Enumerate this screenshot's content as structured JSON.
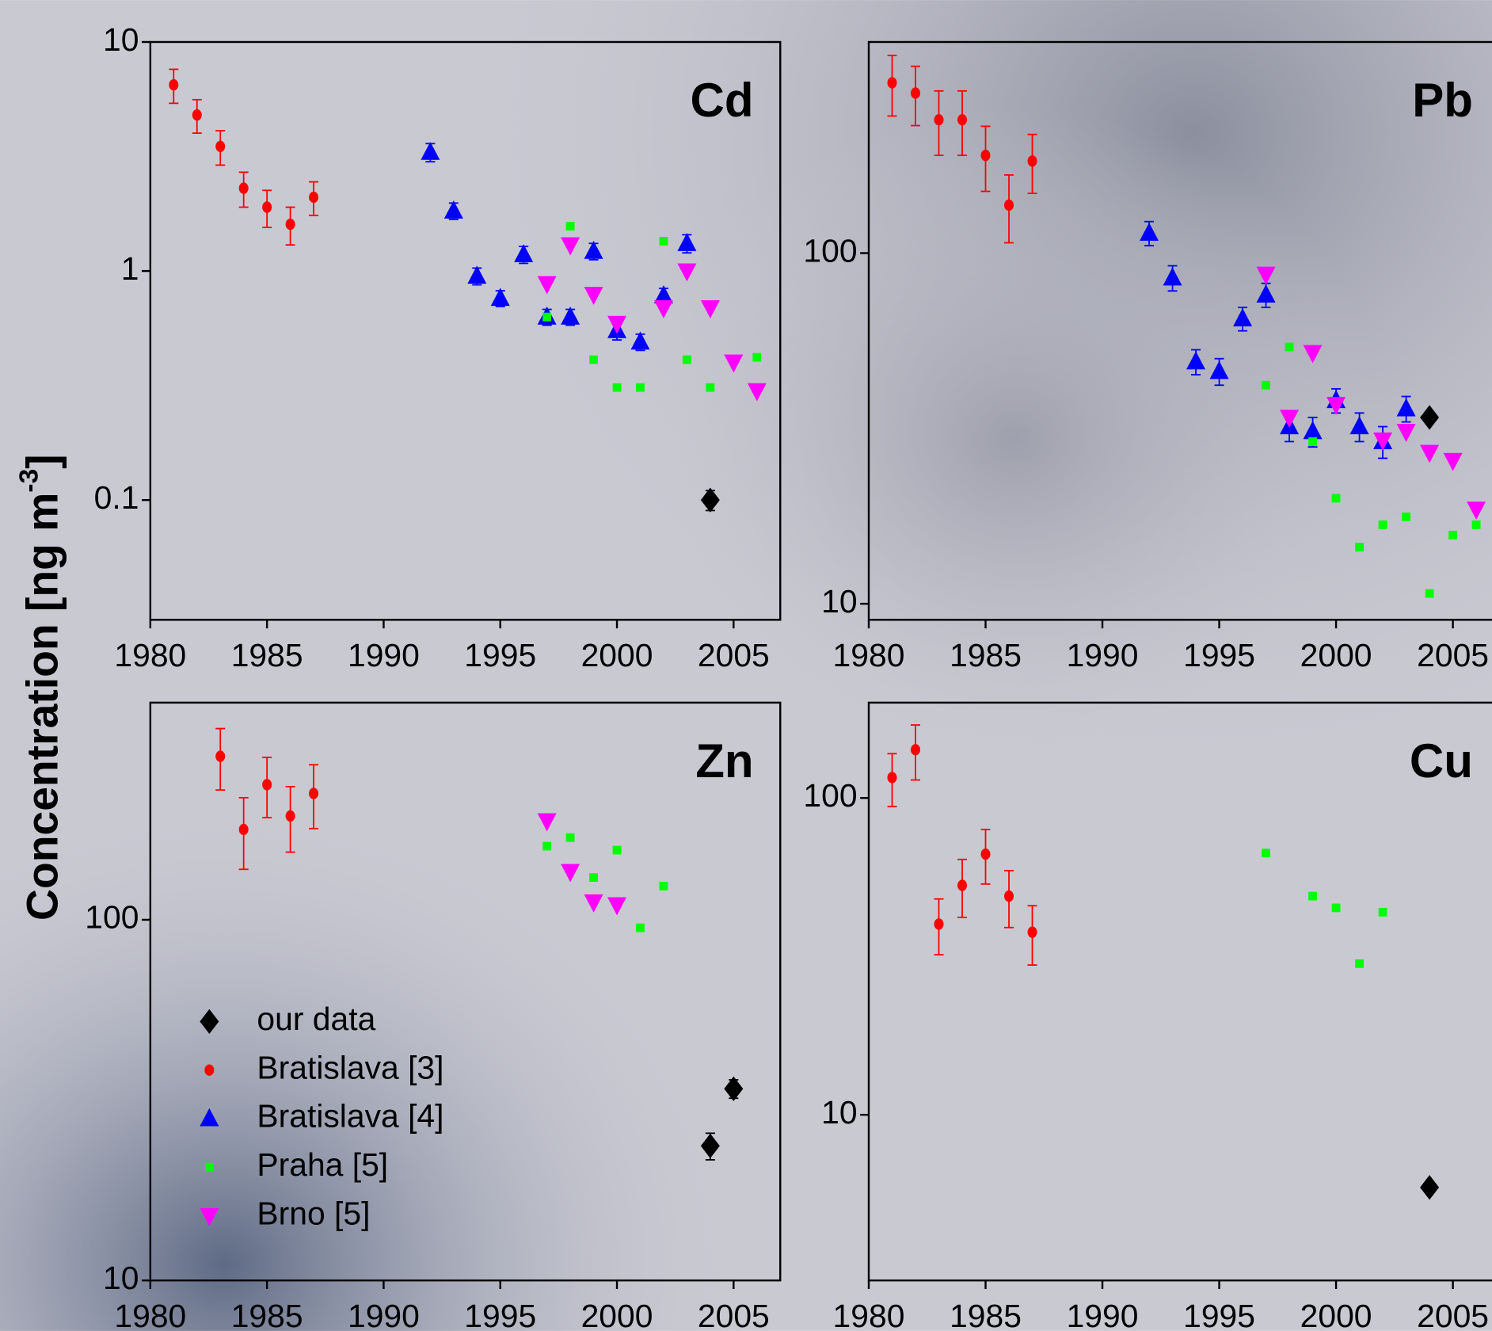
{
  "ylabel": {
    "text": "Concentration [ng m",
    "sup": "-3",
    "end": "]"
  },
  "legend": [
    {
      "name": "our data",
      "color": "#000000",
      "marker": "diamond"
    },
    {
      "name": "Bratislava [3]",
      "color": "#ff0000",
      "marker": "circle"
    },
    {
      "name": "Bratislava [4]",
      "color": "#0000ff",
      "marker": "triangle-up"
    },
    {
      "name": "Praha [5]",
      "color": "#00ff00",
      "marker": "square"
    },
    {
      "name": "Brno [5]",
      "color": "#ff00ff",
      "marker": "triangle-down"
    }
  ],
  "chart_data": [
    {
      "type": "scatter",
      "label": "Cd",
      "log_y": true,
      "xlim": [
        1980,
        2007
      ],
      "ylim": [
        0.03,
        10
      ],
      "xticks": [
        1980,
        1985,
        1990,
        1995,
        2000,
        2005
      ],
      "yticks": [
        0.1,
        1,
        10
      ],
      "series": [
        {
          "color": "#ff0000",
          "marker": "circle",
          "x": [
            1981,
            1982,
            1983,
            1984,
            1985,
            1986,
            1987
          ],
          "values": [
            6.5,
            4.8,
            3.5,
            2.3,
            1.9,
            1.6,
            2.1
          ],
          "errors": [
            1.1,
            0.8,
            0.6,
            0.4,
            0.35,
            0.3,
            0.35
          ]
        },
        {
          "color": "#0000ff",
          "marker": "triangle-up",
          "x": [
            1992,
            1993,
            1994,
            1995,
            1996,
            1997,
            1998,
            1999,
            2000,
            2001,
            2002,
            2003
          ],
          "values": [
            3.3,
            1.83,
            0.95,
            0.76,
            1.18,
            0.63,
            0.63,
            1.22,
            0.55,
            0.49,
            0.78,
            1.32
          ],
          "errors": [
            0.3,
            0.15,
            0.08,
            0.06,
            0.1,
            0.05,
            0.05,
            0.1,
            0.05,
            0.04,
            0.06,
            0.12
          ]
        },
        {
          "color": "#00ff00",
          "marker": "square",
          "x": [
            1997,
            1998,
            1999,
            2000,
            2001,
            2002,
            2003,
            2004,
            2006
          ],
          "values": [
            0.63,
            1.57,
            0.41,
            0.31,
            0.31,
            1.35,
            0.41,
            0.31,
            0.42
          ]
        },
        {
          "color": "#ff00ff",
          "marker": "triangle-down",
          "x": [
            1997,
            1998,
            1999,
            2000,
            2002,
            2003,
            2004,
            2005,
            2006
          ],
          "values": [
            0.88,
            1.3,
            0.79,
            0.59,
            0.69,
            1.0,
            0.69,
            0.4,
            0.3
          ]
        },
        {
          "color": "#000000",
          "marker": "diamond",
          "x": [
            2004
          ],
          "values": [
            0.1
          ],
          "errors": [
            0.01
          ]
        }
      ]
    },
    {
      "type": "scatter",
      "label": "Pb",
      "log_y": true,
      "xlim": [
        1980,
        2007
      ],
      "ylim": [
        9,
        400
      ],
      "xticks": [
        1980,
        1985,
        1990,
        1995,
        2000,
        2005
      ],
      "yticks": [
        10,
        100
      ],
      "series": [
        {
          "color": "#ff0000",
          "marker": "circle",
          "x": [
            1981,
            1982,
            1983,
            1984,
            1985,
            1986,
            1987
          ],
          "values": [
            306,
            286,
            240,
            240,
            190,
            137,
            183
          ],
          "errors": [
            60,
            55,
            50,
            50,
            40,
            30,
            35
          ]
        },
        {
          "color": "#0000ff",
          "marker": "triangle-up",
          "x": [
            1992,
            1993,
            1994,
            1995,
            1996,
            1997,
            1998,
            1999,
            2000,
            2001,
            2002,
            2003
          ],
          "values": [
            114,
            85,
            49,
            46,
            65,
            76,
            32,
            31,
            38,
            32,
            29,
            36
          ],
          "errors": [
            9,
            7,
            4,
            4,
            5,
            6,
            3,
            3,
            3,
            3,
            3,
            3
          ]
        },
        {
          "color": "#00ff00",
          "marker": "square",
          "x": [
            1997,
            1998,
            1999,
            2000,
            2001,
            2002,
            2003,
            2004,
            2005,
            2006
          ],
          "values": [
            42,
            54,
            29,
            20,
            14.5,
            16.8,
            17.7,
            10.7,
            15.7,
            16.8
          ]
        },
        {
          "color": "#ff00ff",
          "marker": "triangle-down",
          "x": [
            1997,
            1998,
            1999,
            2000,
            2002,
            2003,
            2004,
            2005,
            2006
          ],
          "values": [
            87,
            34,
            52,
            37,
            29.3,
            31,
            27,
            25.6,
            18.6
          ]
        },
        {
          "color": "#000000",
          "marker": "diamond",
          "x": [
            2004
          ],
          "values": [
            34
          ]
        }
      ]
    },
    {
      "type": "scatter",
      "label": "Zn",
      "log_y": true,
      "legend": true,
      "xlim": [
        1980,
        2007
      ],
      "ylim": [
        10,
        400
      ],
      "xticks": [
        1980,
        1985,
        1990,
        1995,
        2000,
        2005
      ],
      "yticks": [
        10,
        100
      ],
      "series": [
        {
          "color": "#ff0000",
          "marker": "circle",
          "x": [
            1983,
            1984,
            1985,
            1986,
            1987
          ],
          "values": [
            284,
            178,
            237,
            194,
            224
          ],
          "errors": [
            55,
            40,
            45,
            40,
            45
          ]
        },
        {
          "color": "#00ff00",
          "marker": "square",
          "x": [
            1997,
            1998,
            1999,
            2000,
            2001,
            2002
          ],
          "values": [
            160,
            169,
            131,
            156,
            95,
            124
          ]
        },
        {
          "color": "#ff00ff",
          "marker": "triangle-down",
          "x": [
            1997,
            1998,
            1999,
            2000
          ],
          "values": [
            188,
            136,
            112,
            110
          ]
        },
        {
          "color": "#000000",
          "marker": "diamond",
          "x": [
            2004,
            2005
          ],
          "values": [
            23.6,
            34
          ],
          "errors": [
            2,
            2
          ]
        }
      ]
    },
    {
      "type": "scatter",
      "label": "Cu",
      "log_y": true,
      "xlim": [
        1980,
        2007
      ],
      "ylim": [
        3,
        200
      ],
      "xticks": [
        1980,
        1985,
        1990,
        1995,
        2000,
        2005
      ],
      "yticks": [
        10,
        100
      ],
      "series": [
        {
          "color": "#ff0000",
          "marker": "circle",
          "x": [
            1981,
            1982,
            1983,
            1984,
            1985,
            1986,
            1987
          ],
          "values": [
            116,
            142,
            40,
            53,
            66.5,
            49,
            37.7
          ],
          "errors": [
            22,
            28,
            8,
            11,
            13,
            10,
            8
          ]
        },
        {
          "color": "#00ff00",
          "marker": "square",
          "x": [
            1997,
            1999,
            2000,
            2001,
            2002
          ],
          "values": [
            67,
            49,
            45,
            30,
            43.6
          ]
        },
        {
          "color": "#000000",
          "marker": "diamond",
          "x": [
            2004
          ],
          "values": [
            5.9
          ]
        }
      ]
    }
  ]
}
